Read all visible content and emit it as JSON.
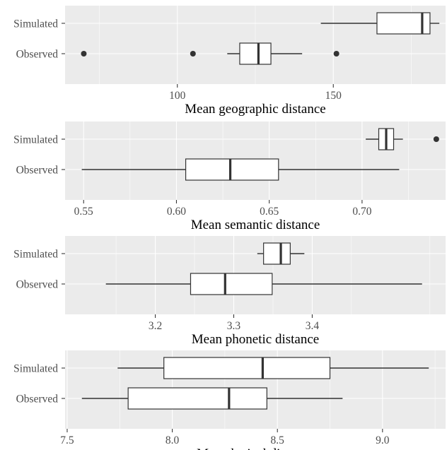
{
  "colors": {
    "panel_background": "#ebebeb",
    "grid": "#ffffff",
    "box_fill": "#ffffff",
    "box_stroke": "#333333",
    "tick_label": "#4d4d4d",
    "axis_title": "#000000"
  },
  "chart_data": [
    {
      "type": "boxplot",
      "xlabel": "Mean geographic distance",
      "categories": [
        "Simulated",
        "Observed"
      ],
      "xlim": [
        64,
        186
      ],
      "x_ticks": [
        100,
        150
      ],
      "x_tick_labels": [
        "100",
        "150"
      ],
      "x_minor_ticks": [
        75,
        125,
        175
      ],
      "grid": true,
      "boxes": [
        {
          "name": "Simulated",
          "whisker_low": 146,
          "q1": 164,
          "median": 178.5,
          "q3": 181,
          "whisker_high": 184,
          "outliers": []
        },
        {
          "name": "Observed",
          "whisker_low": 116,
          "q1": 120,
          "median": 126,
          "q3": 130,
          "whisker_high": 140,
          "outliers": [
            70,
            105,
            151
          ]
        }
      ]
    },
    {
      "type": "boxplot",
      "xlabel": "Mean semantic distance",
      "categories": [
        "Simulated",
        "Observed"
      ],
      "xlim": [
        0.54,
        0.745
      ],
      "x_ticks": [
        0.55,
        0.6,
        0.65,
        0.7
      ],
      "x_tick_labels": [
        "0.55",
        "0.60",
        "0.65",
        "0.70"
      ],
      "x_minor_ticks": [
        0.575,
        0.625,
        0.675,
        0.725
      ],
      "grid": true,
      "boxes": [
        {
          "name": "Simulated",
          "whisker_low": 0.702,
          "q1": 0.709,
          "median": 0.713,
          "q3": 0.717,
          "whisker_high": 0.722,
          "outliers": [
            0.74
          ]
        },
        {
          "name": "Observed",
          "whisker_low": 0.549,
          "q1": 0.605,
          "median": 0.629,
          "q3": 0.655,
          "whisker_high": 0.72,
          "outliers": []
        }
      ]
    },
    {
      "type": "boxplot",
      "xlabel": "Mean phonetic distance",
      "categories": [
        "Simulated",
        "Observed"
      ],
      "xlim": [
        3.085,
        3.57
      ],
      "x_ticks": [
        3.2,
        3.3,
        3.4
      ],
      "x_tick_labels": [
        "3.2",
        "3.3",
        "3.4"
      ],
      "x_minor_ticks": [
        3.15,
        3.25,
        3.35,
        3.45,
        3.55
      ],
      "grid": true,
      "boxes": [
        {
          "name": "Simulated",
          "whisker_low": 3.33,
          "q1": 3.338,
          "median": 3.36,
          "q3": 3.372,
          "whisker_high": 3.39,
          "outliers": []
        },
        {
          "name": "Observed",
          "whisker_low": 3.137,
          "q1": 3.245,
          "median": 3.289,
          "q3": 3.349,
          "whisker_high": 3.54,
          "outliers": []
        }
      ]
    },
    {
      "type": "boxplot",
      "xlabel": "Mean lexical distance",
      "categories": [
        "Simulated",
        "Observed"
      ],
      "xlim": [
        7.49,
        9.3
      ],
      "x_ticks": [
        7.5,
        8.0,
        8.5,
        9.0
      ],
      "x_tick_labels": [
        "7.5",
        "8.0",
        "8.5",
        "9.0"
      ],
      "x_minor_ticks": [
        7.75,
        8.25,
        8.75,
        9.25
      ],
      "grid": true,
      "boxes": [
        {
          "name": "Simulated",
          "whisker_low": 7.74,
          "q1": 7.96,
          "median": 8.43,
          "q3": 8.75,
          "whisker_high": 9.22,
          "outliers": []
        },
        {
          "name": "Observed",
          "whisker_low": 7.57,
          "q1": 7.79,
          "median": 8.27,
          "q3": 8.45,
          "whisker_high": 8.81,
          "outliers": []
        }
      ]
    }
  ]
}
